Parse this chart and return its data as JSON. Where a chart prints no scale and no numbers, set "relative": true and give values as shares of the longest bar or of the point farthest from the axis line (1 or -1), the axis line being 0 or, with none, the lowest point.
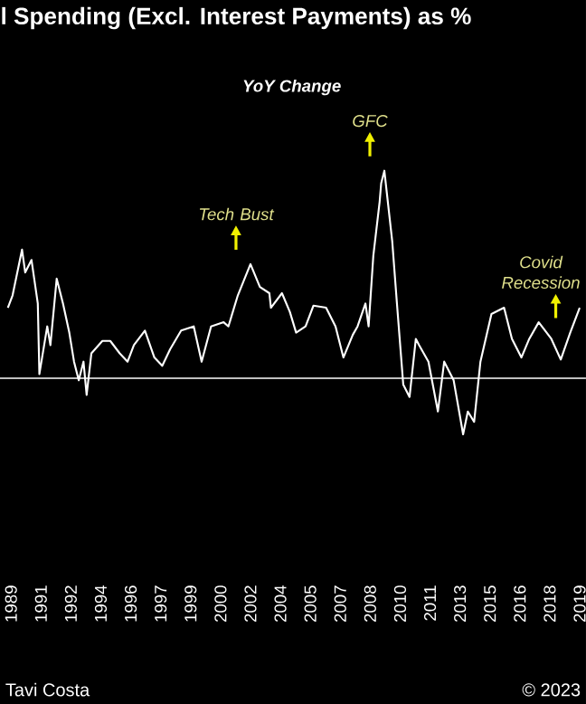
{
  "chart_data": {
    "type": "line",
    "relative": true,
    "title": "l Spending (Excl. Interest Payments) as %",
    "subtitle": "YoY Change",
    "x": [
      "1989-08",
      "1989-11",
      "1990-05",
      "1990-07",
      "1990-11",
      "1991-03",
      "1991-04",
      "1991-09",
      "1991-11",
      "1992-03",
      "1992-07",
      "1992-11",
      "1993-02",
      "1993-05",
      "1993-08",
      "1993-10",
      "1994-01",
      "1994-08",
      "1995-01",
      "1995-07",
      "1995-12",
      "1996-04",
      "1996-11",
      "1997-05",
      "1997-10",
      "1998-03",
      "1998-10",
      "1999-06",
      "1999-11",
      "2000-05",
      "2001-01",
      "2001-04",
      "2001-10",
      "2002-06",
      "2002-12",
      "2003-06",
      "2003-07",
      "2004-02",
      "2004-07",
      "2004-11",
      "2005-05",
      "2005-10",
      "2006-06",
      "2006-12",
      "2007-05",
      "2007-11",
      "2008-02",
      "2008-07",
      "2008-09",
      "2008-12",
      "2009-04",
      "2009-05",
      "2009-07",
      "2009-12",
      "2010-03",
      "2010-07",
      "2010-11",
      "2011-03",
      "2011-05",
      "2011-11",
      "2012-05",
      "2012-09",
      "2013-03",
      "2013-09",
      "2013-12",
      "2014-04",
      "2014-08",
      "2015-03",
      "2015-11",
      "2016-04",
      "2016-10",
      "2017-03",
      "2017-09",
      "2018-05",
      "2018-11",
      "2019-05",
      "2019-11"
    ],
    "series": [
      {
        "color": "#ffffff",
        "values": [
          0.34,
          0.4,
          0.62,
          0.51,
          0.57,
          0.36,
          0.02,
          0.25,
          0.16,
          0.48,
          0.36,
          0.22,
          0.08,
          -0.01,
          0.08,
          -0.08,
          0.12,
          0.18,
          0.18,
          0.12,
          0.08,
          0.16,
          0.23,
          0.1,
          0.06,
          0.14,
          0.23,
          0.25,
          0.08,
          0.25,
          0.27,
          0.25,
          0.4,
          0.55,
          0.44,
          0.41,
          0.34,
          0.41,
          0.32,
          0.22,
          0.25,
          0.35,
          0.34,
          0.25,
          0.1,
          0.21,
          0.25,
          0.36,
          0.25,
          0.59,
          0.85,
          0.94,
          1.0,
          0.66,
          0.36,
          -0.03,
          -0.09,
          0.19,
          0.16,
          0.08,
          -0.16,
          0.08,
          -0.01,
          -0.27,
          -0.16,
          -0.21,
          0.08,
          0.31,
          0.34,
          0.19,
          0.1,
          0.19,
          0.27,
          0.19,
          0.09,
          0.22,
          0.34
        ]
      }
    ],
    "xlim": [
      "1989-03",
      "2020-03"
    ],
    "xticks": [
      {
        "value": "1989-10",
        "label": "1989"
      },
      {
        "value": "1991-05",
        "label": "1991"
      },
      {
        "value": "1992-12",
        "label": "1992"
      },
      {
        "value": "1994-07",
        "label": "1994"
      },
      {
        "value": "1996-02",
        "label": "1996"
      },
      {
        "value": "1997-09",
        "label": "1997"
      },
      {
        "value": "1999-04",
        "label": "1999"
      },
      {
        "value": "2000-11",
        "label": "2000"
      },
      {
        "value": "2002-06",
        "label": "2002"
      },
      {
        "value": "2004-01",
        "label": "2004"
      },
      {
        "value": "2005-08",
        "label": "2005"
      },
      {
        "value": "2007-03",
        "label": "2007"
      },
      {
        "value": "2008-10",
        "label": "2008"
      },
      {
        "value": "2010-05",
        "label": "2010"
      },
      {
        "value": "2011-12",
        "label": "2011"
      },
      {
        "value": "2013-07",
        "label": "2013"
      },
      {
        "value": "2015-02",
        "label": "2015"
      },
      {
        "value": "2016-09",
        "label": "2016"
      },
      {
        "value": "2018-04",
        "label": "2018"
      },
      {
        "value": "2019-11",
        "label": "2019"
      }
    ],
    "tick_labels": "x",
    "marker": "none",
    "line_style": "solid",
    "annotations": [
      {
        "text": "Tech Bust",
        "x": "2002-06",
        "y": 0.55
      },
      {
        "text": "GFC",
        "x": "2009-07",
        "y": 1.0
      },
      {
        "text": "Covid Recession",
        "x": "2019-05",
        "y": 0.22
      },
      "Tavi Costa",
      "© 2023"
    ]
  }
}
